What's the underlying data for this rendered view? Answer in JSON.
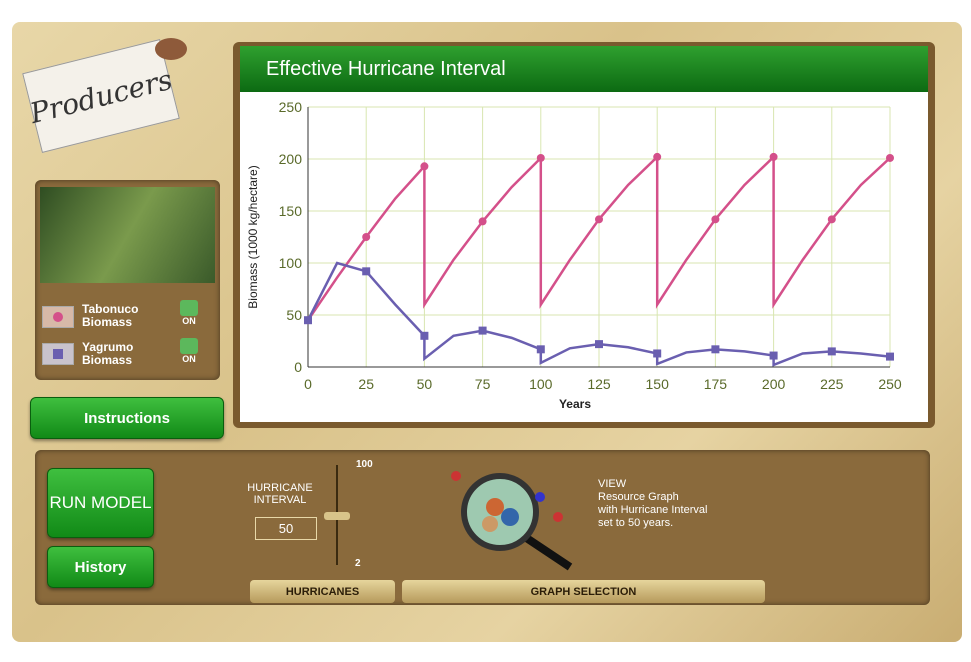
{
  "sign": "Producers",
  "chart_data": {
    "type": "line",
    "title": "Effective Hurricane Interval",
    "x_label": "Years",
    "y_label": "Biomass (1000 kg/hectare)",
    "x": [
      0,
      12.5,
      25,
      37.5,
      50,
      50,
      62.5,
      75,
      87.5,
      100,
      100,
      112.5,
      125,
      137.5,
      150,
      150,
      162.5,
      175,
      187.5,
      200,
      200,
      212.5,
      225,
      237.5,
      250
    ],
    "series": [
      {
        "name": "Tabonuco Biomass",
        "color": "#d4508a",
        "values": [
          45,
          86,
          125,
          162,
          193,
          60,
          103,
          140,
          173,
          201,
          60,
          103,
          142,
          175,
          202,
          60,
          103,
          142,
          175,
          202,
          60,
          103,
          142,
          175,
          201
        ]
      },
      {
        "name": "Yagrumo Biomass",
        "color": "#6a5fb0",
        "values": [
          45,
          100,
          92,
          60,
          30,
          8,
          30,
          35,
          28,
          17,
          4,
          18,
          22,
          19,
          13,
          3,
          14,
          17,
          15,
          11,
          2,
          13,
          15,
          13,
          10
        ]
      }
    ],
    "xlim": [
      0,
      250
    ],
    "xticks": [
      0,
      25,
      50,
      75,
      100,
      125,
      150,
      175,
      200,
      225,
      250
    ],
    "ylim": [
      0,
      250
    ],
    "yticks": [
      0,
      50,
      100,
      150,
      200,
      250
    ],
    "grid": true
  },
  "toggles": [
    "ON",
    "ON"
  ],
  "buttons": {
    "instructions": "Instructions",
    "run_model": "RUN MODEL",
    "history": "History"
  },
  "slider": {
    "label": "HURRICANE INTERVAL",
    "max": 100,
    "min": 2,
    "value": 50
  },
  "view_text": [
    "VIEW",
    "Resource Graph",
    "with Hurricane Interval",
    "set to 50 years."
  ],
  "tabs": [
    "HURRICANES",
    "GRAPH SELECTION"
  ]
}
